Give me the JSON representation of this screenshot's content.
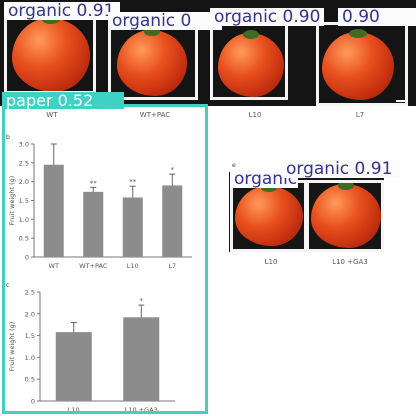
{
  "figure": {
    "panel_a": {
      "photos": [
        {
          "id": "wt",
          "label": "WT"
        },
        {
          "id": "wtpac",
          "label": "WT+PAC"
        },
        {
          "id": "l10",
          "label": "L10"
        },
        {
          "id": "l7",
          "label": "L7"
        }
      ],
      "scale_bar": true
    },
    "panel_b": {
      "letter": "b"
    },
    "panel_c": {
      "letter": "c"
    },
    "panel_e": {
      "letter": "e",
      "photos": [
        {
          "id": "l10",
          "label": "L10"
        },
        {
          "id": "l10ga3",
          "label": "L10 +GA3"
        }
      ]
    }
  },
  "detections": [
    {
      "label": "organic 0.91"
    },
    {
      "label": "organic 0"
    },
    {
      "label": "organic 0.90"
    },
    {
      "label": "0.90"
    },
    {
      "label": "organic 0.90"
    },
    {
      "label": "organic 0.91"
    },
    {
      "label": "paper 0.52"
    }
  ],
  "chart_data": [
    {
      "type": "bar",
      "panel": "b",
      "categories": [
        "WT",
        "WT+PAC",
        "L10",
        "L7"
      ],
      "values": [
        2.45,
        1.73,
        1.58,
        1.9
      ],
      "errors": [
        0.55,
        0.12,
        0.3,
        0.3
      ],
      "significance": [
        "",
        "**",
        "**",
        "*"
      ],
      "ylabel": "Fruit weight (g)",
      "ylim": [
        0,
        3.0
      ],
      "yticks": [
        0,
        0.5,
        1.0,
        1.5,
        2.0,
        2.5,
        3.0
      ],
      "grid": false,
      "bar_color": "#8c8c8c"
    },
    {
      "type": "bar",
      "panel": "c",
      "categories": [
        "L10",
        "L10 +GA3"
      ],
      "values": [
        1.58,
        1.92
      ],
      "errors": [
        0.22,
        0.28
      ],
      "significance": [
        "",
        "*"
      ],
      "ylabel": "Fruit weight (g)",
      "ylim": [
        0,
        2.5
      ],
      "yticks": [
        0,
        0.5,
        1.0,
        1.5,
        2.0,
        2.5
      ],
      "grid": false,
      "bar_color": "#8c8c8c"
    }
  ]
}
